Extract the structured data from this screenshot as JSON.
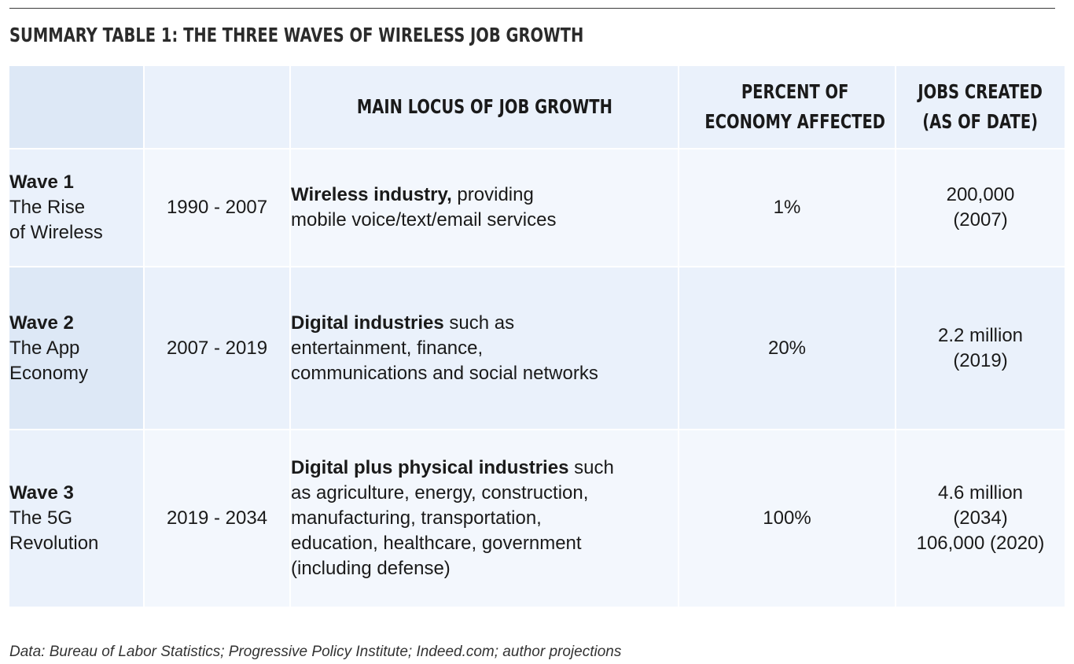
{
  "title": "SUMMARY TABLE 1: THE THREE WAVES OF WIRELESS JOB GROWTH",
  "headers": {
    "col0": "",
    "col1": "",
    "col2": "MAIN LOCUS OF JOB GROWTH",
    "col3_line1": "PERCENT OF",
    "col3_line2": "ECONOMY AFFECTED",
    "col4_line1": "JOBS CREATED",
    "col4_line2": "(AS OF DATE)"
  },
  "rows": [
    {
      "wave": "Wave 1",
      "name_line1": "The Rise",
      "name_line2": "of Wireless",
      "years": "1990 - 2007",
      "locus_bold": "Wireless industry,",
      "locus_rest_line1": " providing",
      "locus_lines": [
        "mobile voice/text/email services"
      ],
      "percent": "1%",
      "jobs_lines": [
        "200,000",
        "(2007)"
      ]
    },
    {
      "wave": "Wave 2",
      "name_line1": "The App",
      "name_line2": "Economy",
      "years": "2007 - 2019",
      "locus_bold": "Digital industries",
      "locus_rest_line1": " such as",
      "locus_lines": [
        "entertainment, finance,",
        "communications and social networks"
      ],
      "percent": "20%",
      "jobs_lines": [
        "2.2 million",
        "(2019)"
      ]
    },
    {
      "wave": "Wave 3",
      "name_line1": "The 5G",
      "name_line2": "Revolution",
      "years": "2019 - 2034",
      "locus_bold": "Digital plus physical industries",
      "locus_rest_line1": " such",
      "locus_lines": [
        "as agriculture, energy, construction,",
        "manufacturing, transportation,",
        "education, healthcare, government",
        "(including defense)"
      ],
      "percent": "100%",
      "jobs_lines": [
        "4.6 million",
        "(2034)",
        "106,000 (2020)"
      ]
    }
  ],
  "source": "Data: Bureau of Labor Statistics; Progressive Policy Institute; Indeed.com; author projections",
  "colors": {
    "header_bg": "#eaf1fb",
    "header_first_bg": "#dde8f6",
    "row_light_bg": "#f3f7fd",
    "row_dark_bg": "#eaf1fb",
    "rule": "#3a3a3a"
  }
}
